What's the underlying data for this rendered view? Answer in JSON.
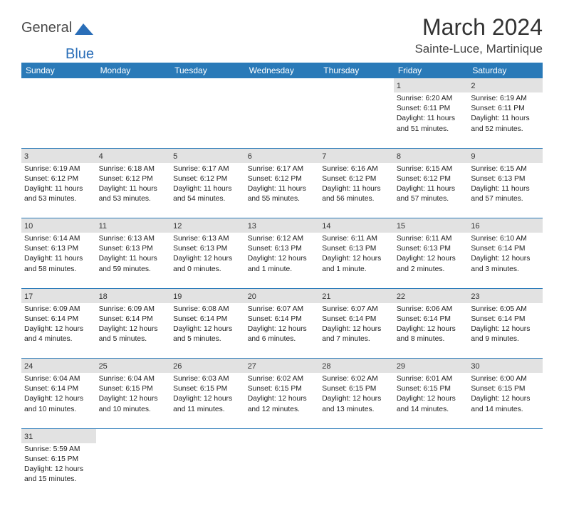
{
  "brand": {
    "part1": "General",
    "part2": "Blue"
  },
  "title": "March 2024",
  "location": "Sainte-Luce, Martinique",
  "colors": {
    "header_bg": "#2a7ab8",
    "header_text": "#ffffff",
    "daynum_bg": "#e2e2e2",
    "border": "#2a7ab8",
    "brand_blue": "#2a6eb8"
  },
  "fonts": {
    "title_pt": 32,
    "location_pt": 17,
    "header_pt": 12,
    "cell_pt": 10.3
  },
  "day_headers": [
    "Sunday",
    "Monday",
    "Tuesday",
    "Wednesday",
    "Thursday",
    "Friday",
    "Saturday"
  ],
  "weeks": [
    {
      "nums": [
        "",
        "",
        "",
        "",
        "",
        "1",
        "2"
      ],
      "cells": [
        "",
        "",
        "",
        "",
        "",
        "Sunrise: 6:20 AM\nSunset: 6:11 PM\nDaylight: 11 hours and 51 minutes.",
        "Sunrise: 6:19 AM\nSunset: 6:11 PM\nDaylight: 11 hours and 52 minutes."
      ]
    },
    {
      "nums": [
        "3",
        "4",
        "5",
        "6",
        "7",
        "8",
        "9"
      ],
      "cells": [
        "Sunrise: 6:19 AM\nSunset: 6:12 PM\nDaylight: 11 hours and 53 minutes.",
        "Sunrise: 6:18 AM\nSunset: 6:12 PM\nDaylight: 11 hours and 53 minutes.",
        "Sunrise: 6:17 AM\nSunset: 6:12 PM\nDaylight: 11 hours and 54 minutes.",
        "Sunrise: 6:17 AM\nSunset: 6:12 PM\nDaylight: 11 hours and 55 minutes.",
        "Sunrise: 6:16 AM\nSunset: 6:12 PM\nDaylight: 11 hours and 56 minutes.",
        "Sunrise: 6:15 AM\nSunset: 6:12 PM\nDaylight: 11 hours and 57 minutes.",
        "Sunrise: 6:15 AM\nSunset: 6:13 PM\nDaylight: 11 hours and 57 minutes."
      ]
    },
    {
      "nums": [
        "10",
        "11",
        "12",
        "13",
        "14",
        "15",
        "16"
      ],
      "cells": [
        "Sunrise: 6:14 AM\nSunset: 6:13 PM\nDaylight: 11 hours and 58 minutes.",
        "Sunrise: 6:13 AM\nSunset: 6:13 PM\nDaylight: 11 hours and 59 minutes.",
        "Sunrise: 6:13 AM\nSunset: 6:13 PM\nDaylight: 12 hours and 0 minutes.",
        "Sunrise: 6:12 AM\nSunset: 6:13 PM\nDaylight: 12 hours and 1 minute.",
        "Sunrise: 6:11 AM\nSunset: 6:13 PM\nDaylight: 12 hours and 1 minute.",
        "Sunrise: 6:11 AM\nSunset: 6:13 PM\nDaylight: 12 hours and 2 minutes.",
        "Sunrise: 6:10 AM\nSunset: 6:14 PM\nDaylight: 12 hours and 3 minutes."
      ]
    },
    {
      "nums": [
        "17",
        "18",
        "19",
        "20",
        "21",
        "22",
        "23"
      ],
      "cells": [
        "Sunrise: 6:09 AM\nSunset: 6:14 PM\nDaylight: 12 hours and 4 minutes.",
        "Sunrise: 6:09 AM\nSunset: 6:14 PM\nDaylight: 12 hours and 5 minutes.",
        "Sunrise: 6:08 AM\nSunset: 6:14 PM\nDaylight: 12 hours and 5 minutes.",
        "Sunrise: 6:07 AM\nSunset: 6:14 PM\nDaylight: 12 hours and 6 minutes.",
        "Sunrise: 6:07 AM\nSunset: 6:14 PM\nDaylight: 12 hours and 7 minutes.",
        "Sunrise: 6:06 AM\nSunset: 6:14 PM\nDaylight: 12 hours and 8 minutes.",
        "Sunrise: 6:05 AM\nSunset: 6:14 PM\nDaylight: 12 hours and 9 minutes."
      ]
    },
    {
      "nums": [
        "24",
        "25",
        "26",
        "27",
        "28",
        "29",
        "30"
      ],
      "cells": [
        "Sunrise: 6:04 AM\nSunset: 6:14 PM\nDaylight: 12 hours and 10 minutes.",
        "Sunrise: 6:04 AM\nSunset: 6:15 PM\nDaylight: 12 hours and 10 minutes.",
        "Sunrise: 6:03 AM\nSunset: 6:15 PM\nDaylight: 12 hours and 11 minutes.",
        "Sunrise: 6:02 AM\nSunset: 6:15 PM\nDaylight: 12 hours and 12 minutes.",
        "Sunrise: 6:02 AM\nSunset: 6:15 PM\nDaylight: 12 hours and 13 minutes.",
        "Sunrise: 6:01 AM\nSunset: 6:15 PM\nDaylight: 12 hours and 14 minutes.",
        "Sunrise: 6:00 AM\nSunset: 6:15 PM\nDaylight: 12 hours and 14 minutes."
      ]
    },
    {
      "nums": [
        "31",
        "",
        "",
        "",
        "",
        "",
        ""
      ],
      "cells": [
        "Sunrise: 5:59 AM\nSunset: 6:15 PM\nDaylight: 12 hours and 15 minutes.",
        "",
        "",
        "",
        "",
        "",
        ""
      ]
    }
  ]
}
